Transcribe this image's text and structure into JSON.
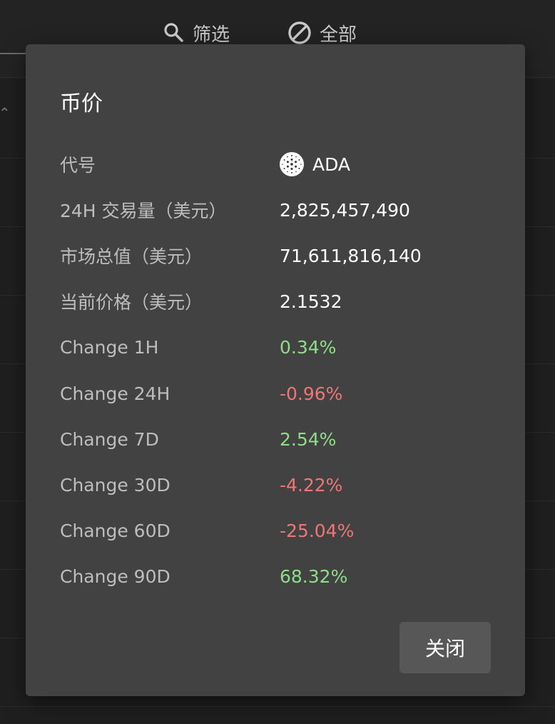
{
  "toolbar": {
    "filter_label": "筛选",
    "all_label": "全部"
  },
  "dialog": {
    "title": "币价",
    "close_label": "关闭",
    "rows": [
      {
        "label": "代号",
        "value": "ADA",
        "icon": "cardano-icon"
      },
      {
        "label": "24H 交易量（美元）",
        "value": "2,825,457,490"
      },
      {
        "label": "市场总值（美元）",
        "value": "71,611,816,140"
      },
      {
        "label": "当前价格（美元）",
        "value": "2.1532"
      },
      {
        "label": "Change 1H",
        "value": "0.34%",
        "trend": "positive"
      },
      {
        "label": "Change 24H",
        "value": "-0.96%",
        "trend": "negative"
      },
      {
        "label": "Change 7D",
        "value": "2.54%",
        "trend": "positive"
      },
      {
        "label": "Change 30D",
        "value": "-4.22%",
        "trend": "negative"
      },
      {
        "label": "Change 60D",
        "value": "-25.04%",
        "trend": "negative"
      },
      {
        "label": "Change 90D",
        "value": "68.32%",
        "trend": "positive"
      }
    ]
  },
  "colors": {
    "positive": "#8fdc8a",
    "negative": "#ee7676",
    "dialog_bg": "#424242",
    "page_bg": "#1f1f1f"
  }
}
